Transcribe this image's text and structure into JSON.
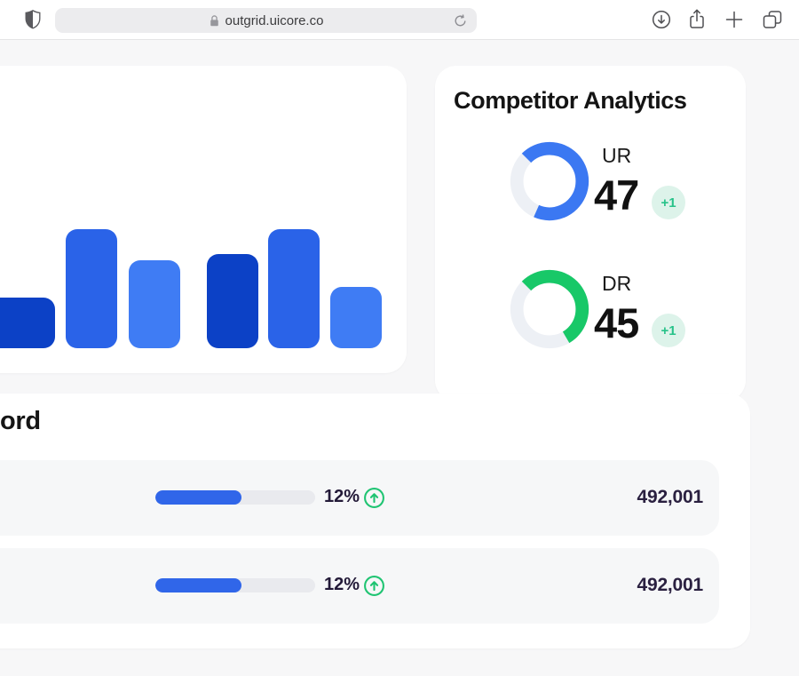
{
  "browser": {
    "url": "outgrid.uicore.co"
  },
  "competitor": {
    "title": "Competitor Analytics",
    "metrics": [
      {
        "label": "UR",
        "value": "47",
        "change": "+1",
        "arc_percent": 69,
        "color": "#3b78f2"
      },
      {
        "label": "DR",
        "value": "45",
        "change": "+1",
        "arc_percent": 54,
        "color": "#18c868"
      }
    ]
  },
  "keyword": {
    "heading_fragment": "ord",
    "rows": [
      {
        "change": "12%",
        "value": "492,001",
        "fill_percent": 54
      },
      {
        "change": "12%",
        "value": "492,001",
        "fill_percent": 54
      }
    ]
  },
  "chart_data": [
    {
      "type": "bar",
      "title": "",
      "categories": [
        "",
        "",
        "",
        "",
        "",
        ""
      ],
      "values": [
        57,
        134,
        99,
        106,
        134,
        69
      ],
      "bar_colors": [
        "#0c41c6",
        "#2a63e8",
        "#3f7cf4",
        "#0c41c6",
        "#2a63e8",
        "#3f7cf4"
      ],
      "xlabel": "",
      "ylabel": "",
      "notes": "decorative mini bar chart, no axes or labels visible"
    },
    {
      "type": "pie",
      "variant": "donut-gauges",
      "series": [
        {
          "name": "UR",
          "value": 47,
          "change": "+1",
          "arc_percent": 69,
          "color": "#3b78f2",
          "track_color": "#edf0f5"
        },
        {
          "name": "DR",
          "value": 45,
          "change": "+1",
          "arc_percent": 54,
          "color": "#18c868",
          "track_color": "#edf0f5"
        }
      ]
    },
    {
      "type": "bar",
      "variant": "progress-rows",
      "rows": [
        {
          "percent_label": "12%",
          "fill_percent": 54,
          "value": "492,001"
        },
        {
          "percent_label": "12%",
          "fill_percent": 54,
          "value": "492,001"
        }
      ],
      "fill_color": "#3066e9",
      "track_color": "#e9eaee"
    }
  ],
  "colors": {
    "progress_fill": "#3066e9",
    "badge_bg": "#ddf3ea",
    "badge_text": "#27c289",
    "up_icon_green": "#1fc472",
    "page_bg": "#f7f7f8"
  }
}
